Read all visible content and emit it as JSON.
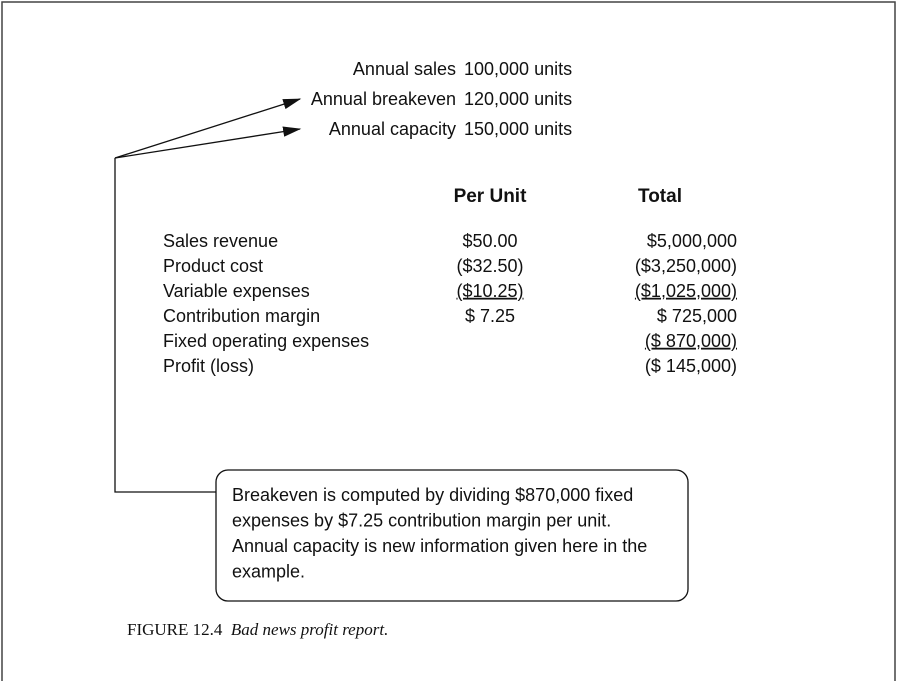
{
  "header": {
    "rows": [
      {
        "label": "Annual sales",
        "value": "100,000 units"
      },
      {
        "label": "Annual breakeven",
        "value": "120,000 units"
      },
      {
        "label": "Annual capacity",
        "value": "150,000 units"
      }
    ]
  },
  "table": {
    "columns": [
      "Per Unit",
      "Total"
    ],
    "rows": [
      {
        "label": "Sales revenue",
        "per_unit": "$50.00",
        "total": "$5,000,000"
      },
      {
        "label": "Product cost",
        "per_unit": "($32.50)",
        "total": "($3,250,000)"
      },
      {
        "label": "Variable expenses",
        "per_unit": "($10.25)",
        "total": "($1,025,000)",
        "underline": [
          "per_unit",
          "total"
        ]
      },
      {
        "label": "Contribution margin",
        "per_unit": "$ 7.25",
        "total": "$ 725,000"
      },
      {
        "label": "Fixed operating expenses",
        "total": "($ 870,000)",
        "underline": [
          "total"
        ]
      },
      {
        "label": "Profit (loss)",
        "total": "($ 145,000)"
      }
    ]
  },
  "callout": {
    "lines": [
      "Breakeven is computed by dividing $870,000 fixed",
      "expenses by $7.25 contribution margin per unit.",
      "Annual capacity is new information given here in the",
      "example."
    ]
  },
  "caption": {
    "number": "FIGURE 12.4",
    "text": "Bad news profit report."
  }
}
